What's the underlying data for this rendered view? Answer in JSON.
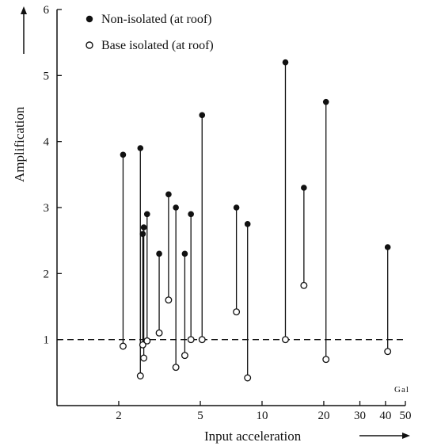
{
  "chart_data": {
    "type": "scatter",
    "xlabel": "Input acceleration",
    "ylabel": "Amplification",
    "x_unit": "Gal",
    "x_scale": "log",
    "xlim": [
      1,
      50
    ],
    "ylim": [
      0,
      6
    ],
    "x_ticks": [
      {
        "value": 2,
        "label": "2"
      },
      {
        "value": 5,
        "label": "5"
      },
      {
        "value": 10,
        "label": "10"
      },
      {
        "value": 20,
        "label": "20"
      },
      {
        "value": 30,
        "label": "30"
      },
      {
        "value": 40,
        "label": "40"
      },
      {
        "value": 50,
        "label": "50"
      }
    ],
    "y_ticks": [
      {
        "value": 1,
        "label": "1"
      },
      {
        "value": 2,
        "label": "2"
      },
      {
        "value": 3,
        "label": "3"
      },
      {
        "value": 4,
        "label": "4"
      },
      {
        "value": 5,
        "label": "5"
      },
      {
        "value": 6,
        "label": "6"
      }
    ],
    "reference_line": {
      "y": 1,
      "style": "dashed"
    },
    "legend": {
      "position": "top-left",
      "entries": [
        {
          "marker": "filled-circle",
          "label": "Non-isolated (at roof)"
        },
        {
          "marker": "open-circle",
          "label": "Base isolated (at roof)"
        }
      ]
    },
    "series": [
      {
        "name": "Non-isolated (at roof)",
        "marker": "filled",
        "points": [
          {
            "x": 2.1,
            "y": 3.8
          },
          {
            "x": 2.55,
            "y": 3.9
          },
          {
            "x": 2.65,
            "y": 2.7
          },
          {
            "x": 2.62,
            "y": 2.6
          },
          {
            "x": 2.75,
            "y": 2.9
          },
          {
            "x": 3.15,
            "y": 2.3
          },
          {
            "x": 3.5,
            "y": 3.2
          },
          {
            "x": 3.8,
            "y": 3.0
          },
          {
            "x": 4.2,
            "y": 2.3
          },
          {
            "x": 4.5,
            "y": 2.9
          },
          {
            "x": 5.1,
            "y": 4.4
          },
          {
            "x": 7.5,
            "y": 3.0
          },
          {
            "x": 8.5,
            "y": 2.75
          },
          {
            "x": 13.0,
            "y": 5.2
          },
          {
            "x": 16.0,
            "y": 3.3
          },
          {
            "x": 20.5,
            "y": 4.6
          },
          {
            "x": 41.0,
            "y": 2.4
          }
        ]
      },
      {
        "name": "Base isolated (at roof)",
        "marker": "open",
        "points": [
          {
            "x": 2.1,
            "y": 0.9
          },
          {
            "x": 2.55,
            "y": 0.45
          },
          {
            "x": 2.65,
            "y": 0.72
          },
          {
            "x": 2.62,
            "y": 0.92
          },
          {
            "x": 2.75,
            "y": 0.98
          },
          {
            "x": 3.15,
            "y": 1.1
          },
          {
            "x": 3.5,
            "y": 1.6
          },
          {
            "x": 3.8,
            "y": 0.58
          },
          {
            "x": 4.2,
            "y": 0.76
          },
          {
            "x": 4.5,
            "y": 1.0
          },
          {
            "x": 5.1,
            "y": 1.0
          },
          {
            "x": 7.5,
            "y": 1.42
          },
          {
            "x": 8.5,
            "y": 0.42
          },
          {
            "x": 13.0,
            "y": 1.0
          },
          {
            "x": 16.0,
            "y": 1.82
          },
          {
            "x": 20.5,
            "y": 0.7
          },
          {
            "x": 41.0,
            "y": 0.82
          }
        ]
      }
    ],
    "grid": false
  }
}
